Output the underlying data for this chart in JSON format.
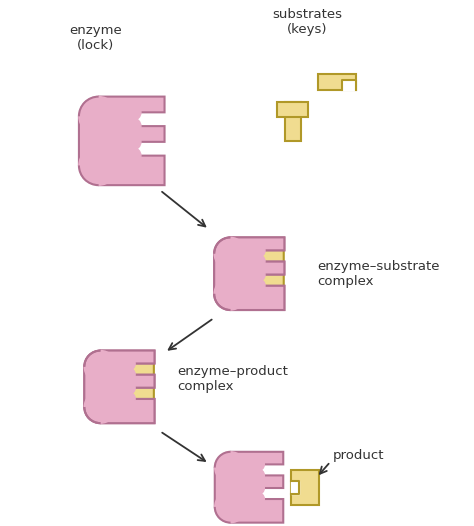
{
  "bg_color": "#ffffff",
  "enzyme_color": "#e8aec8",
  "enzyme_edge": "#b07090",
  "substrate_color": "#f0dc90",
  "substrate_edge": "#b09828",
  "text_color": "#333333",
  "arrow_color": "#333333",
  "labels": {
    "enzyme": "enzyme\n(lock)",
    "substrates": "substrates\n(keys)",
    "enzyme_substrate": "enzyme–substrate\ncomplex",
    "enzyme_product": "enzyme–product\ncomplex",
    "product": "product"
  },
  "fontsize": 9.5
}
